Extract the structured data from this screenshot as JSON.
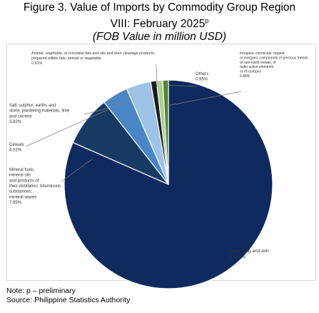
{
  "title": {
    "line1": "Figure 3. Value of Imports by Commodity Group Region",
    "line2_main": "VIII: February 2025",
    "line2_sup": "p",
    "line3": "(FOB Value in million USD)"
  },
  "chart_data": {
    "type": "pie",
    "title": "Value of Imports by Commodity Group Region VIII: February 2025",
    "unit": "FOB Value in million USD",
    "slices": [
      {
        "label": "Ores, slag and ash",
        "value": 81.57,
        "value_text": "81.57%",
        "color": "#0e2a5e"
      },
      {
        "label": "Mineral fuels, mineral oils and products of their distillation; bituminous substances; mineral waxes",
        "value": 7.85,
        "value_text": "7.85%",
        "color": "#173a63"
      },
      {
        "label": "Cereals",
        "value": 4.02,
        "value_text": "4.02%",
        "color": "#4a86c5"
      },
      {
        "label": "Salt; sulphur; earths and stone; plastering materials, lime and cement",
        "value": 3.82,
        "value_text": "3.82%",
        "color": "#9dc3e6"
      },
      {
        "label": "Animal, vegetable, or microbial fats and oils and their cleavage products; prepared edible fats; animal or vegetable",
        "value": 0.91,
        "value_text": "0.91%",
        "color": "#1c1c1c"
      },
      {
        "label": "Others",
        "value": 0.95,
        "value_text": "0.95%",
        "color": "#a9d18e"
      },
      {
        "label": "Inorganic chemicals; organic or inorganic compounds of precious metals, of rare-earth metals, of radio active elements or of isotopes",
        "value": 0.88,
        "value_text": "0.88%",
        "color": "#548235"
      }
    ]
  },
  "notes": {
    "preliminary": "Note: p – preliminary",
    "source": "Source: Philippine Statistics Authority"
  }
}
